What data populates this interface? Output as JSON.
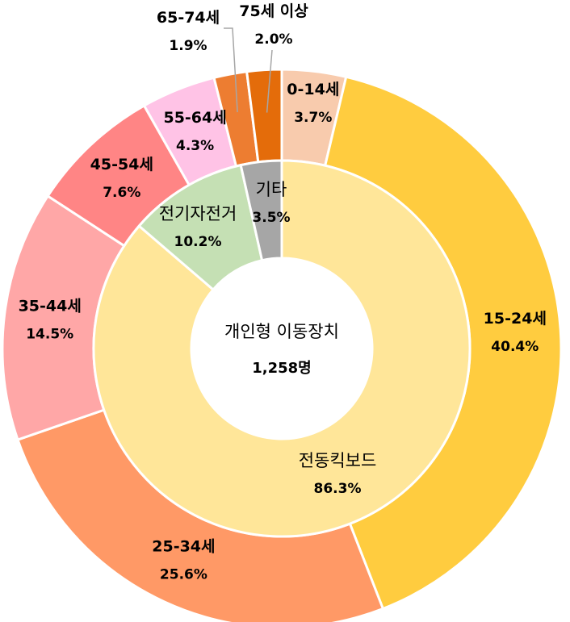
{
  "chart_data": {
    "type": "pie",
    "variant": "nested-donut",
    "center": {
      "title": "개인형 이동장치",
      "value": "1,258명"
    },
    "inner_ring": [
      {
        "label": "전동킥보드",
        "value": 86.3,
        "value_label": "86.3%",
        "color": "#FFE699"
      },
      {
        "label": "전기자전거",
        "value": 10.2,
        "value_label": "10.2%",
        "color": "#C5E0B4"
      },
      {
        "label": "기타",
        "value": 3.5,
        "value_label": "3.5%",
        "color": "#A6A6A6"
      }
    ],
    "outer_ring": [
      {
        "label": "0-14세",
        "value": 3.7,
        "value_label": "3.7%",
        "color": "#F8CBAD"
      },
      {
        "label": "15-24세",
        "value": 40.4,
        "value_label": "40.4%",
        "color": "#FFCC3F"
      },
      {
        "label": "25-34세",
        "value": 25.6,
        "value_label": "25.6%",
        "color": "#FF9966"
      },
      {
        "label": "35-44세",
        "value": 14.5,
        "value_label": "14.5%",
        "color": "#FFA7A7"
      },
      {
        "label": "45-54세",
        "value": 7.6,
        "value_label": "7.6%",
        "color": "#FF8585"
      },
      {
        "label": "55-64세",
        "value": 4.3,
        "value_label": "4.3%",
        "color": "#FFC3E6"
      },
      {
        "label": "65-74세",
        "value": 1.9,
        "value_label": "1.9%",
        "color": "#ED7D31"
      },
      {
        "label": "75세 이상",
        "value": 2.0,
        "value_label": "2.0%",
        "color": "#E46C0A"
      }
    ]
  }
}
